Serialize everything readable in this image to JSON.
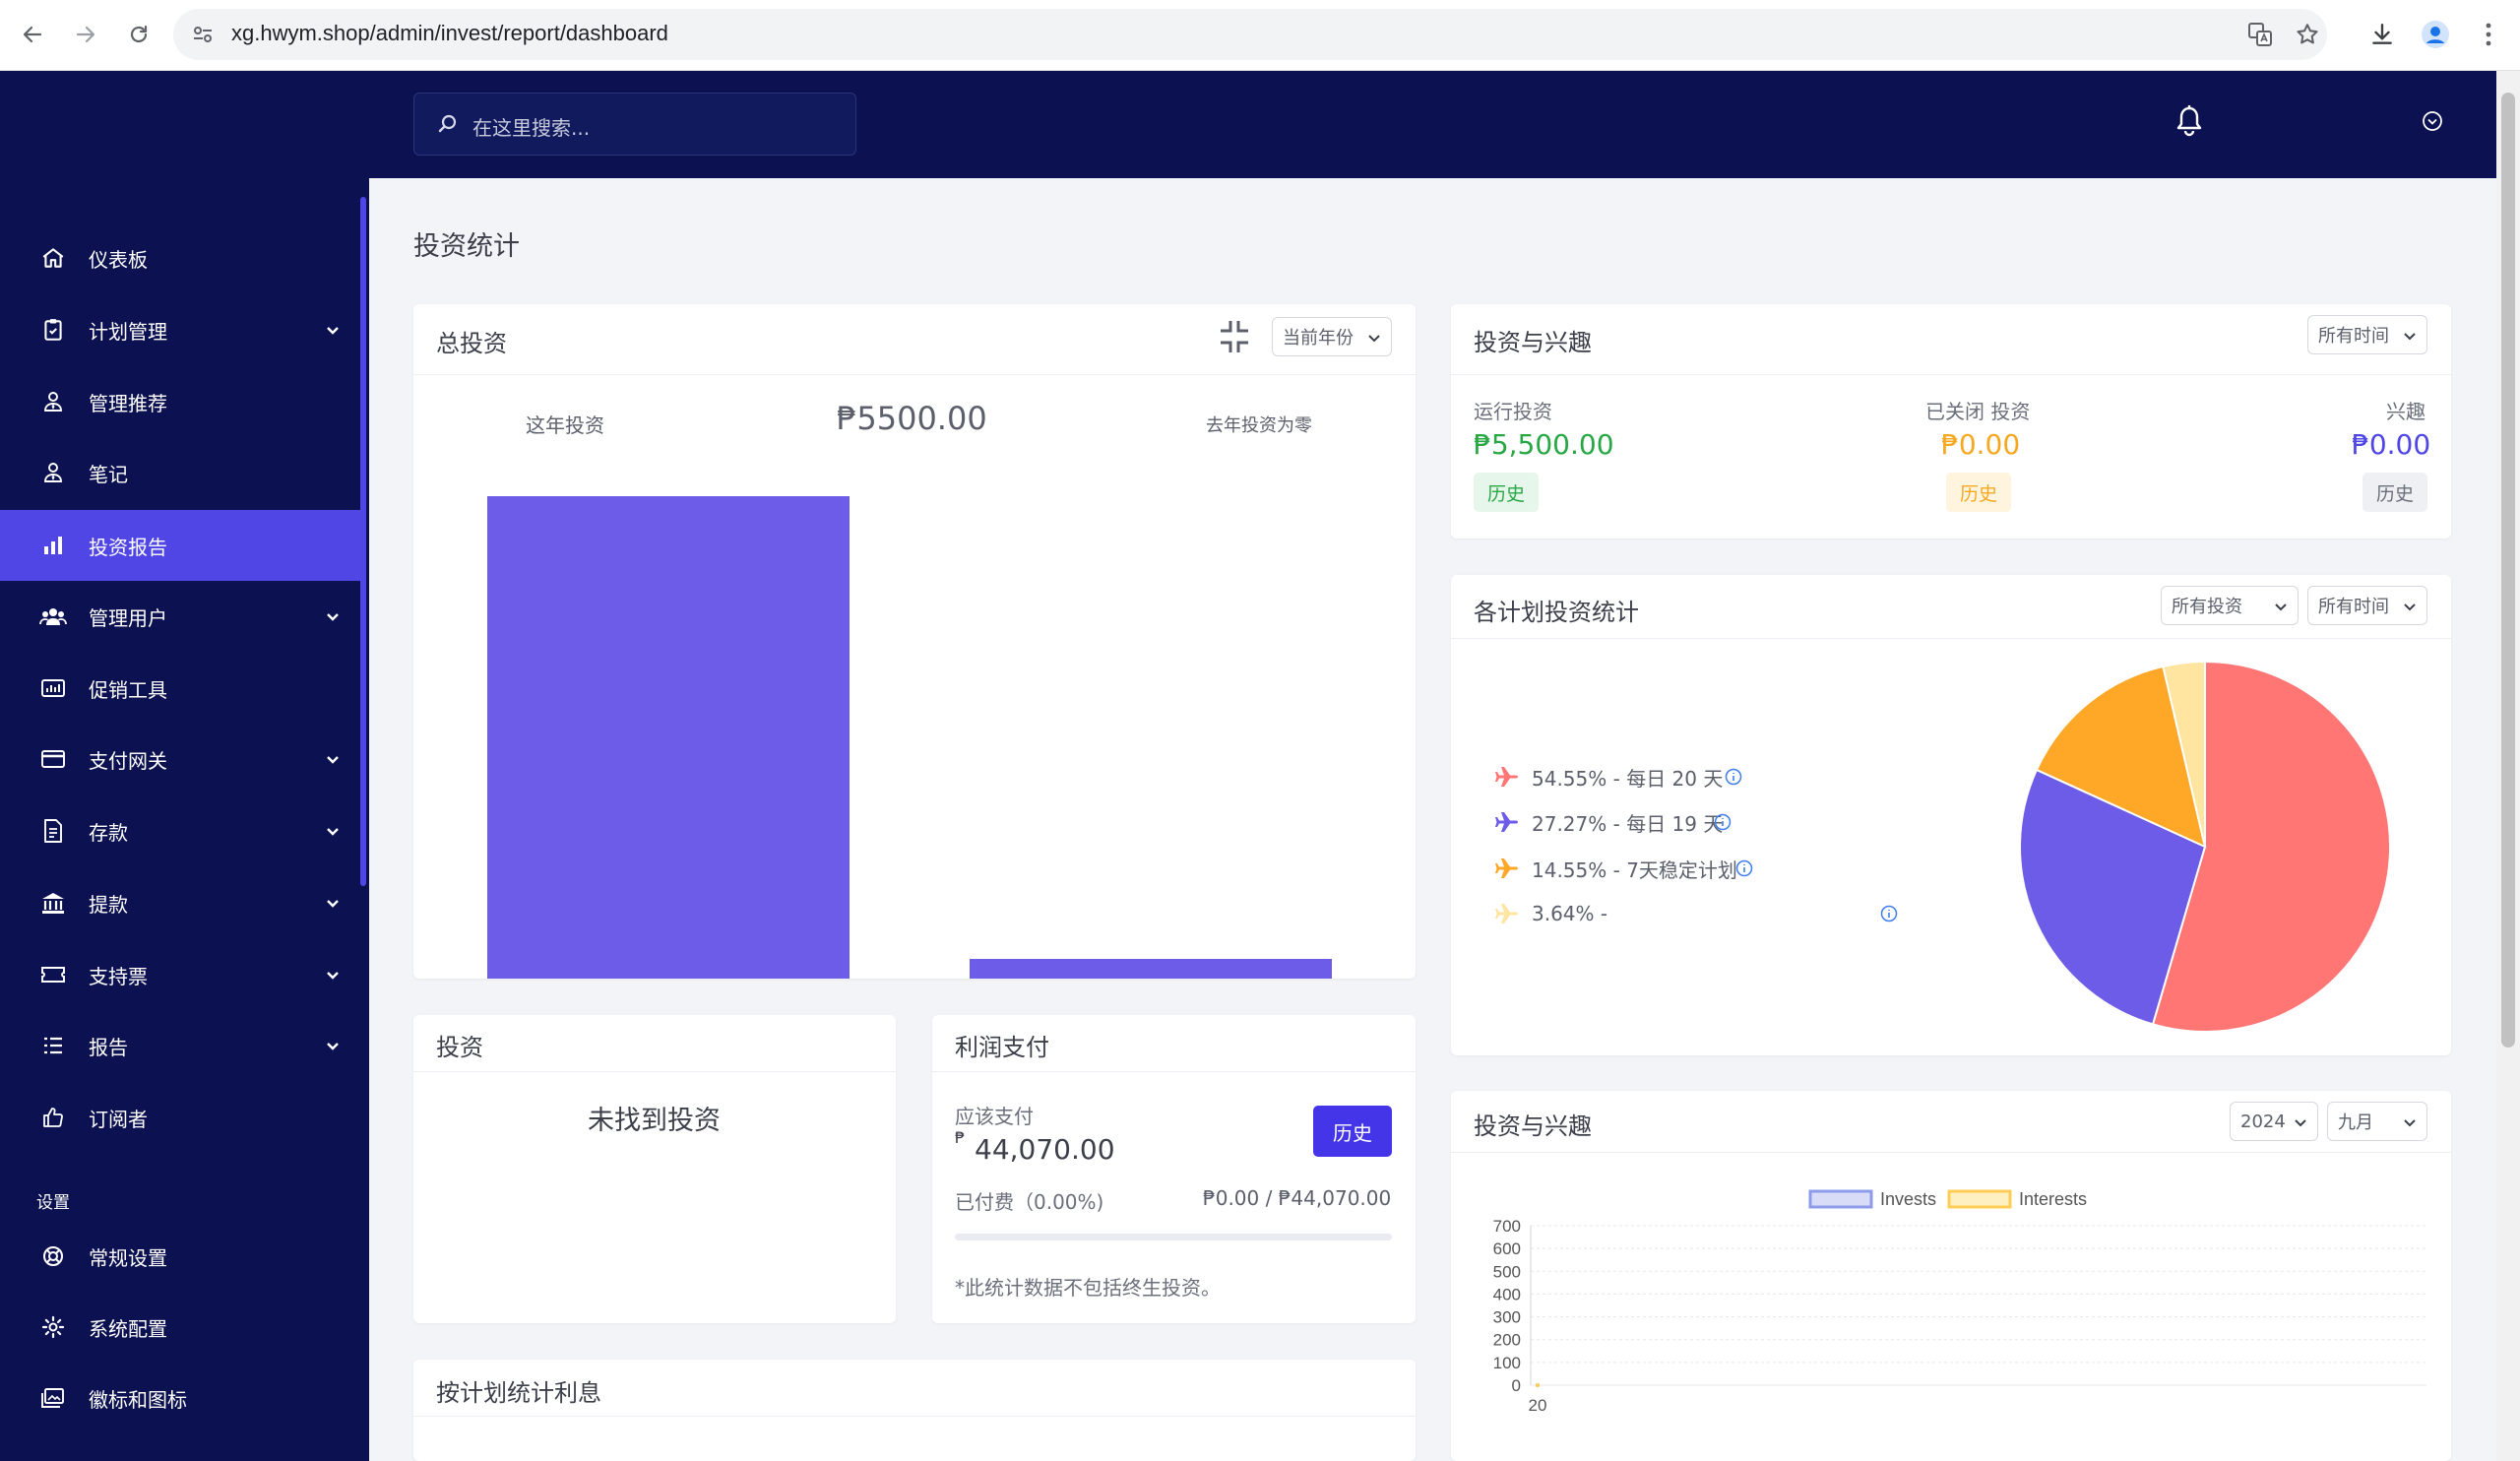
{
  "browser": {
    "url": "xg.hwym.shop/admin/invest/report/dashboard"
  },
  "search": {
    "placeholder": "在这里搜索..."
  },
  "sidebar": {
    "items": [
      {
        "label": "仪表板",
        "icon": "home-icon",
        "has_children": false
      },
      {
        "label": "计划管理",
        "icon": "clipboard-icon",
        "has_children": true
      },
      {
        "label": "管理推荐",
        "icon": "user-tie-icon",
        "has_children": false
      },
      {
        "label": "笔记",
        "icon": "user-tie-icon",
        "has_children": false
      },
      {
        "label": "投资报告",
        "icon": "bar-chart-icon",
        "has_children": false,
        "active": true
      },
      {
        "label": "管理用户",
        "icon": "users-icon",
        "has_children": true
      },
      {
        "label": "促销工具",
        "icon": "chart-box-icon",
        "has_children": false
      },
      {
        "label": "支付网关",
        "icon": "credit-card-icon",
        "has_children": true
      },
      {
        "label": "存款",
        "icon": "file-invoice-icon",
        "has_children": true
      },
      {
        "label": "提款",
        "icon": "bank-icon",
        "has_children": true
      },
      {
        "label": "支持票",
        "icon": "ticket-icon",
        "has_children": true
      },
      {
        "label": "报告",
        "icon": "list-icon",
        "has_children": true
      },
      {
        "label": "订阅者",
        "icon": "thumbs-up-icon",
        "has_children": false
      }
    ],
    "section_label": "设置",
    "settings_items": [
      {
        "label": "常规设置",
        "icon": "life-ring-icon"
      },
      {
        "label": "系统配置",
        "icon": "gear-icon"
      },
      {
        "label": "徽标和图标",
        "icon": "images-icon"
      }
    ],
    "accent": "#5046e5",
    "background": "#0c1251"
  },
  "page": {
    "title": "投资统计"
  },
  "total_invest": {
    "title": "总投资",
    "period_select": "当前年份",
    "this_year_label": "这年投资",
    "amount": "₱5500.00",
    "last_year_label": "去年投资为零",
    "bar_color": "#6c5ce7"
  },
  "invest_interest_summary": {
    "title": "投资与兴趣",
    "time_select": "所有时间",
    "running_label": "运行投资",
    "running_value": "₱5,500.00",
    "closed_label": "已关闭 投资",
    "closed_value": "₱0.00",
    "interest_label": "兴趣",
    "interest_value": "₱0.00",
    "history_label": "历史",
    "colors": {
      "running": "#28a745",
      "closed": "#f6a821",
      "interest": "#5046e5"
    }
  },
  "plan_stats": {
    "title": "各计划投资统计",
    "invest_select": "所有投资",
    "time_select": "所有时间",
    "legend": [
      {
        "text": "54.55% - 每日 20 天",
        "color": "#ff7675"
      },
      {
        "text": "27.27% - 每日 19 天",
        "color": "#6c5ce7"
      },
      {
        "text": "14.55% - 7天稳定计划",
        "color": "#ffa726"
      },
      {
        "text": "3.64% -",
        "color": "#ffe5a0"
      }
    ]
  },
  "invest_card": {
    "title": "投资",
    "empty_text": "未找到投资"
  },
  "profit_card": {
    "title": "利润支付",
    "payable_label": "应该支付",
    "currency_symbol": "₱",
    "payable_value": "44,070.00",
    "history_button": "历史",
    "paid_label": "已付费（0.00%)",
    "paid_ratio": "₱0.00 / ₱44,070.00",
    "progress_fraction": 0,
    "note": "*此统计数据不包括终生投资。"
  },
  "plan_interest_card": {
    "title": "按计划统计利息"
  },
  "invest_interest_chart": {
    "title": "投资与兴趣",
    "year_select": "2024",
    "month_select": "九月"
  },
  "chart_data": [
    {
      "type": "bar",
      "categories": [
        "这年投资",
        "去年投资为零"
      ],
      "values": [
        5500,
        0
      ],
      "title": "总投资",
      "legend": "none"
    },
    {
      "type": "pie",
      "categories": [
        "每日 20 天",
        "每日 19 天",
        "7天稳定计划",
        ""
      ],
      "values": [
        54.55,
        27.27,
        14.55,
        3.64
      ],
      "colors": [
        "#ff7675",
        "#6c5ce7",
        "#ffa726",
        "#ffe5a0"
      ],
      "legend": "left"
    },
    {
      "type": "line",
      "series": [
        {
          "name": "Invests",
          "values": [
            0
          ],
          "color": "#8c9bea"
        },
        {
          "name": "Interests",
          "values": [
            0
          ],
          "color": "#ffcd56"
        }
      ],
      "x": [
        "20"
      ],
      "ylim": [
        0,
        700
      ],
      "yticks": [
        "700",
        "600",
        "500",
        "400",
        "300",
        "200",
        "100",
        "0"
      ],
      "grid": true,
      "legend": "top"
    }
  ]
}
